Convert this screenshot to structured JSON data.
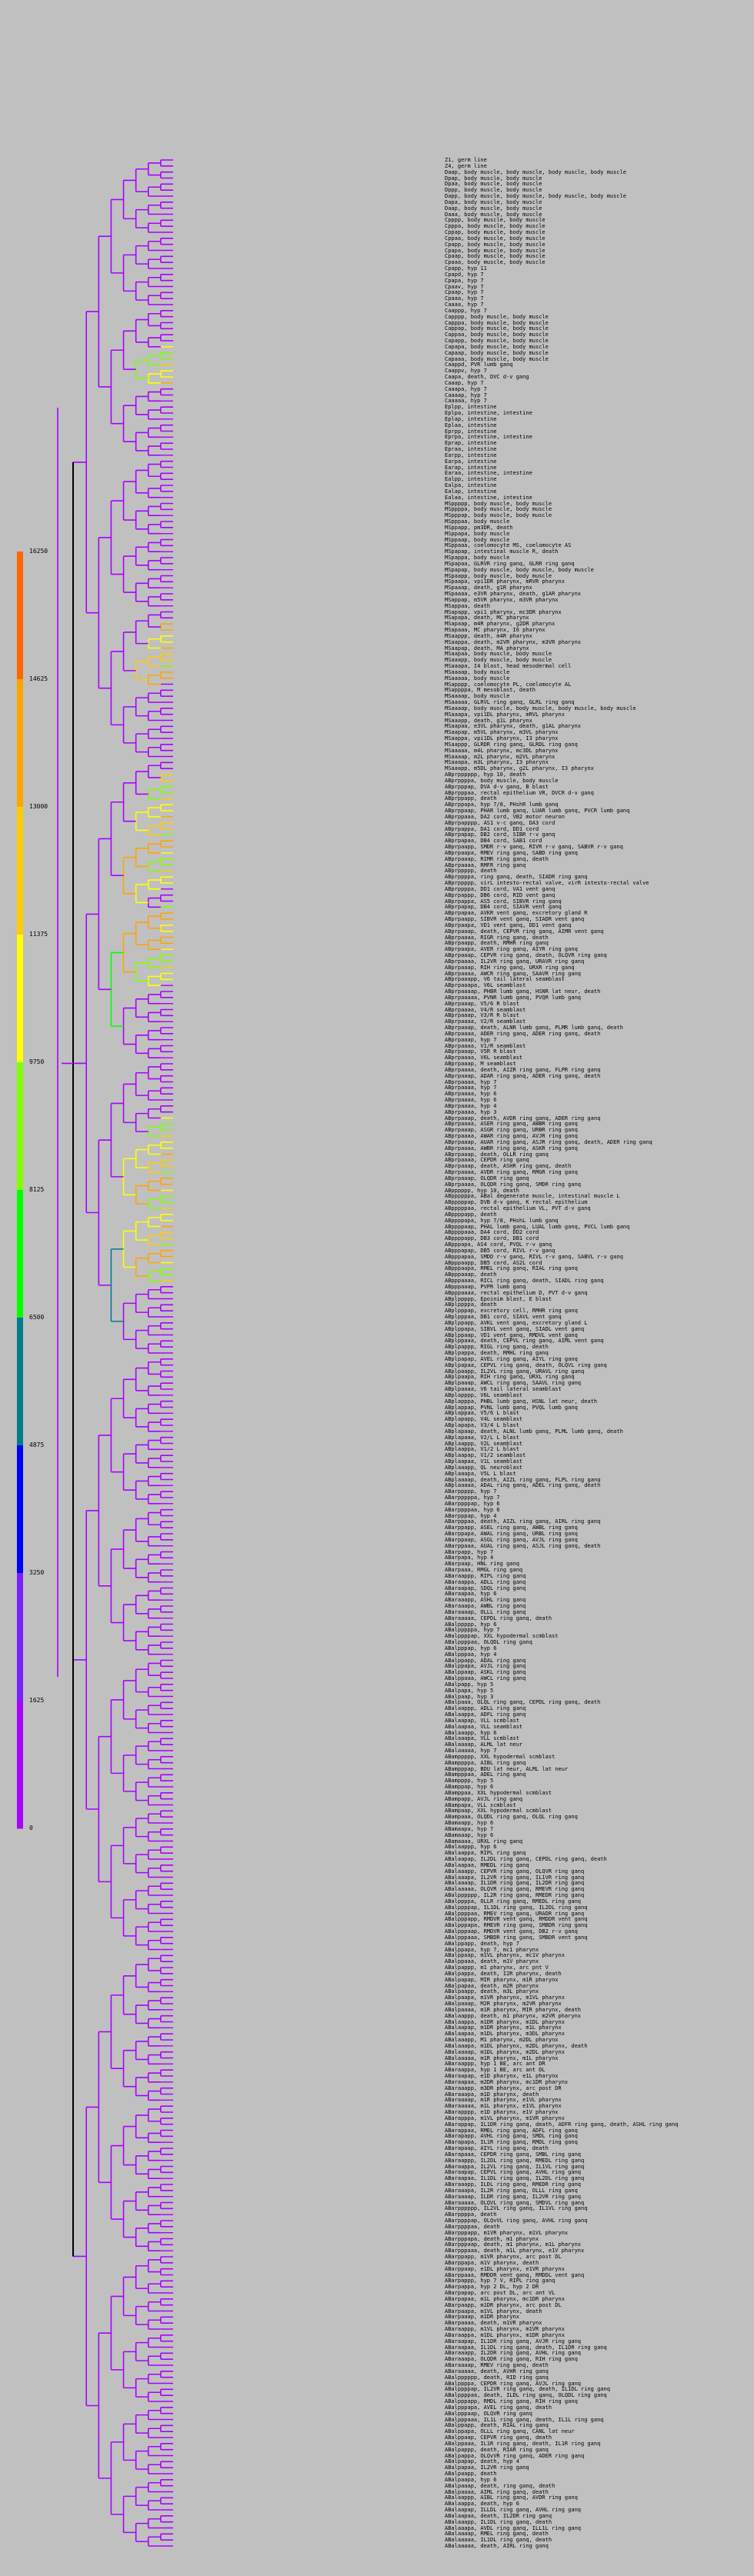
{
  "colors": {
    "background": "#c0c0c0",
    "tree_default": "#aa00ff",
    "root_line": "#000000",
    "heat_scale": [
      "#aa00ff",
      "#7a1fff",
      "#0000ff",
      "#007e8c",
      "#00ff00",
      "#7fff00",
      "#ffff00",
      "#ffcc00",
      "#ffa500",
      "#ff6600"
    ]
  },
  "legend": {
    "ticks": [
      "16250",
      "14625",
      "13000",
      "11375",
      "9750",
      "8125",
      "6500",
      "4875",
      "3250",
      "1625",
      "0"
    ]
  },
  "labels": [
    "Z1, germ line",
    "Z4, germ line",
    "Daap, body muscle, body muscle, body muscle, body muscle",
    "Dpap, body muscle, body muscle",
    "Dpaa, body muscle, body muscle",
    "Dppp, body muscle, body muscle",
    "Dapp, body muscle, body muscle, body muscle, body muscle",
    "Dapa, body muscle, body muscle",
    "Daap, body muscle, body muscle",
    "Daaa, body muscle, body muscle",
    "Cpppp, body muscle, body muscle",
    "Cpppa, body muscle, body muscle",
    "Cppap, body muscle, body muscle",
    "Cppaa, body muscle, body muscle",
    "Cpapp, body muscle, body muscle",
    "Cpapa, body muscle, body muscle",
    "Cpaap, body muscle, body muscle",
    "Cpaaa, body muscle, body muscle",
    "Cpapp, hyp 11",
    "Cpapd, hyp 7",
    "Cpapa, hyp 7",
    "Cpaav, hyp 7",
    "Cpaap, hyp 7",
    "Cpaaa, hyp 7",
    "Caaaa, hyp 7",
    "Caappp, hyp 7",
    "Capppp, body muscle, body muscle",
    "Capppa, body muscle, body muscle",
    "Cappap, body muscle, body muscle",
    "Cappaa, body muscle, body muscle",
    "Capapp, body muscle, body muscle",
    "Capapa, body muscle, body muscle",
    "Capaap, body muscle, body muscle",
    "Capaaa, body muscle, body muscle",
    "Caappd, PVR lumb ganq",
    "Caappv, hyp 7",
    "Caapa, death, DVC d-v gang",
    "Caaap, hyp 7",
    "Caaapa, hyp 7",
    "Caaaap, hyp 7",
    "Caaaaa, hyp 7",
    "Eplpp, intestine",
    "Eplpa, intestine, intestine",
    "Eplap, intestine",
    "Eplaa, intestine",
    "Eprpp, intestine",
    "Eprpa, intestine, intestine",
    "Eprap, intestine",
    "Epraa, intestine",
    "Earpp, intestine",
    "Earpa, intestine",
    "Earap, intestine",
    "Earaa, intestine, intestine",
    "Ealpp, intestine",
    "Ealpa, intestine",
    "Ealap, intestine",
    "Ealaa, intestine, intestine",
    "MSppppp, body muscle, body muscle",
    "MSppppa, body muscle, body muscle",
    "MSpppap, body muscle, body muscle",
    "MSpppaa, body muscle",
    "MSppapp, pm3DR, death",
    "MSppapa, body muscle",
    "MSppaap, body muscle",
    "MSppaaa, coelomocyte MS, coelomocyte AS",
    "MSpapap, intestinal muscle R, death",
    "MSpappa, body muscle",
    "MSpapaa, GLRVR ring ganq, GLRR ring ganq",
    "MSpapap, body muscle, body muscle, body muscle",
    "MSpaapp, body muscle, body muscle",
    "MSpaapa, vpi1DR pharynx, mRVR pharynx",
    "MSpaaap, death, g1R pharynx",
    "MSpaaaa, e3VR pharynx, death, g1AR pharynx",
    "MSappap, m5VR pharynx, m3VR pharynx",
    "MSappaa, death",
    "MSapapp, vpi1 pharynx, mc3DR pharynx",
    "MSapapa, death, MC pharynx",
    "MSapaap, m4R pharynx, g2DR pharynx",
    "MSapaaa, MC pharynx, I6 pharynx",
    "MSaappp, death, m4R pharynx",
    "MSaappa, death, m2VR pharynx, m3VR pharynx",
    "MSaapap, death, MA pharynx",
    "MSaapaa, body muscle, body muscle",
    "MSaaapp, body muscle, body muscle",
    "MSaaapa, I4 blast, head mesodermal cell",
    "MSaaaap, body muscle",
    "MSaaaaa, body muscle",
    "MSapppp, coelomocyte PL, coelomocyte AL",
    "MSappppa, M mesoblast, death",
    "MSaaaap, body muscle",
    "MSaaaaa, GLRVL ring ganq, GLRL ring ganq",
    "MSaaaap, body muscle, body muscle, body muscle, body muscle",
    "MSaaapa, vpi1DL pharynx, mRVL pharynx",
    "MSaaapp, death, g1L pharynx",
    "MSaapaa, e3VL pharynx, death, g1AL pharynx",
    "MSaapap, m5VL pharynx, m3VL pharynx",
    "MSaappa, vpi1DL pharynx, I3 pharynx",
    "MSaappp, GLRDR ring ganq, GLRDL ring ganq",
    "MSaaaaa, m4L pharynx, mc3DL pharynx",
    "MSaaaap, m2L pharynx, m2VL pharynx",
    "MSaaapa, m3L pharynx, I3 pharynx",
    "MSaaapp, m5DL pharynx, g2L pharynx, I3 pharynx",
    "ABprpppppp, hyp 10, death",
    "ABprppppa, body muscle, body muscle",
    "ABprpppap, DVA d-v ganq, B blast",
    "ABprpppaa, rectal epithelium VR, DVCR d-v ganq",
    "ABprppapp, death",
    "ABprppapa, hyp 7/8, PHshR lumb ganq",
    "ABprppaap, PHAR lumb ganq, LUAR lumb ganq, PVCR lumb ganq",
    "ABprppaaa, DA2 cord, VB2 motor neuron",
    "ABprpapppp, AS1 v-c ganq, DA3 cord",
    "ABprpappa, DA1 cord, DD1 cord",
    "ABprpapap, DB2 cord, SIBR r-v ganq",
    "ABprpapaa, DB4 cord, SAB1 cord",
    "ABprpaapp, SMDR r-v ganq, RIVR r-v ganq, SABVR r-v ganq",
    "ABprpaapa, RMEV ring ganq, SABD ring ganq",
    "ABprpaaap, RIMR ring ganq, death",
    "ABprpaaaa, RMFR ring ganq",
    "ABprppppp, death",
    "ABprppppa, ring ganq, death, SIADR ring ganq",
    "ABprppppp, virL intesto-rectal valve, virR intesto-rectal valve",
    "ABprppppa, DD1 cord, VA1 vent ganq",
    "ABprpappp, DB6 cord, RID vent ganq",
    "ABprpappa, AS5 cord, SIBVR ring ganq",
    "ABprpapap, DB4 cord, SIAVR vent ganq",
    "ABprpapaa, AVKR vent ganq, excretory gland R",
    "ABprpaapp, SIBVR vent ganq, SIADR vent ganq",
    "ABprpaapa, VD1 vent ganq, DD1 vent ganq",
    "ABprpaaap, death, CEPVR ring ganq, AIMR vent ganq",
    "ABprpaaaa, RIGR ring ganq, death",
    "ABprpaapp, death, RMHR ring ganq",
    "ABprpaapa, AVER ring ganq, AIYR ring ganq",
    "ABprpaaap, CEPVR ring ganq, death, OLQVR ring ganq",
    "ABprpaaaa, IL2VR ring ganq, URAVR ring ganq",
    "ABprpaaap, RIH ring ganq, URXR ring ganq",
    "ABprpaaaa, AWCR ring ganq, SAAVR ring ganq",
    "ABprpaaapp, V6 tail lateral seamblast",
    "ABprpaaapa, V6L seamblast",
    "ABprpaaaap, PHBR lumb ganq, HSNR lat neur, death",
    "ABprpaaaaa, PVNR lumb ganq, PVQR lumb ganq",
    "ABprpaaap, V5/6 R blast",
    "ABprpaaaa, V4/R seamblast",
    "ABprpaaap, V3/R R blast",
    "ABprpaaaa, V2/R seamblast",
    "ABprpaaap, death, ALNR lumb ganq, PLMR lumb ganq, death",
    "ABprpaaaa, ADER ring ganq, ADER ring ganq, death",
    "ABprpaaap, hyp 7",
    "ABprpaaaa, V1/R seamblast",
    "ABprpaaap, V5R R blast",
    "ABprpaaaa, V6L seamblast",
    "ABprpaaap, M seamblast",
    "ABprpaaaa, death, AIZR ring ganq, FLPR ring ganq",
    "ABprpaaap, ADAR ring ganq, ADER ring ganq, death",
    "ABprpaaaa, hyp 7",
    "ABprpaaaa, hyp 7",
    "ABprpaaaa, hyp 6",
    "ABprpaaaa, hyp 6",
    "ABprpaaaa, hyp 4",
    "ABprpaaaa, hyp 3",
    "ABprpaaap, death, AVDR ring ganq, ADER ring ganq",
    "ABprpaaaa, ASER ring ganq, AWBR ring ganq",
    "ABprpaaap, ASGR ring ganq, URBR ring ganq",
    "ABprpaaaa, AWAR ring ganq, AVJR ring ganq",
    "ABprpaaap, AUAR ring ganq, ASJR ring ganq, death, ADER ring ganq",
    "ABprpaaaa, AWBR ring ganq, ASKR ring ganq",
    "ABprpaaap, death, OLLR ring ganq",
    "ABprpaaaa, CEPDR ring ganq",
    "ABprpaaap, death, ASHR ring ganq, death",
    "ABprpaaaa, AVDR ring ganq, RMGR ring ganq",
    "ABprpaaap, OLQDR ring ganq",
    "ABprpaaaa, OLQDR ring ganq, SMDR ring ganq",
    "ABpppppp, hyp 10, death",
    "ABppppppa, ABal degenerate muscle, intestinal muscle L",
    "ABpppppap, DVB d-v ganq, K rectal epithelium",
    "ABpppppaa, rectal epithelium VL, PVT d-v ganq",
    "ABppppapp, death",
    "ABppppapa, hyp 7/8, PHshL lumb ganq",
    "ABppppaap, PHAL lumb ganq, LUAL lumb ganq, PVCL lumb ganq",
    "ABppppaaa, DA4 cord, DD2 cord",
    "ABppppapp, DB3 cord, DB1 cord",
    "ABpppapa, AS4 cord, PVQL r-v ganq",
    "ABpppapap, DB5 cord, RIVL r-v ganq",
    "ABpppapaa, SMDD r-v ganq, RIVL r-v ganq, SABVL r-v ganq",
    "ABpppaapp, DB5 cord, AS2L cord",
    "ABpppaapa, RMEL ring ganq, RIAL ring ganq",
    "ABpppaaap, death",
    "ABpppaaaa, RICL ring ganq, death, SIADL ring ganq",
    "ABpppaaap, PVPR lumb ganq",
    "ABpppaaaa, rectal epithelium D, PVT d-v ganq",
    "ABplppppp, Epoinim blast, E blast",
    "ABplppppa, death",
    "ABplpppap, excretory cell, RMHR ring ganq",
    "ABplpppaa, DB1 cord, SIAVL vent ganq",
    "ABplppapp, AVKL vent ganq, excretory gland L",
    "ABplppapa, SIBVL vent ganq, SIADL vent ganq",
    "ABplppaap, VD1 vent ganq, RMDVL vent ganq",
    "ABplppaaa, death, CEPVL ring ganq, AIML vent ganq",
    "ABplpappp, RIGL ring ganq, death",
    "ABplpappa, death, RMHL ring ganq",
    "ABplpapap, AVEL ring ganq, AIYL ring ganq",
    "ABplpapaa, CEPVL ring ganq, death, OLQVL ring ganq",
    "ABplpaapp, IL2VL ring ganq, URAVL ring ganq",
    "ABplpaapa, RIH ring ganq, URXL ring ganq",
    "ABplpaaap, AWCL ring ganq, SAAVL ring ganq",
    "ABplpaaaa, V6 tail lateral seamblast",
    "ABplapppp, V6L seamblast",
    "ABplapppa, PHBL lumb ganq, HSNL lat neur, death",
    "ABplappap, PVNL lumb ganq, PVQL lumb ganq",
    "ABplappaa, V5/6 L blast",
    "ABplapapp, V4L seamblast",
    "ABplapapa, V3/4 L blast",
    "ABplapaap, death, ALNL lumb ganq, PLML lumb ganq, death",
    "ABplapaaa, V2/L L blast",
    "ABplaappp, V2L seamblast",
    "ABplaappa, V1/2 L blast",
    "ABplaapap, V1/2 seamblast",
    "ABplaapaa, V1L seamblast",
    "ABplaaapp, QL neuroblast",
    "ABplaaapa, V5L L blast",
    "ABplaaaap, death, AIZL ring ganq, FLPL ring ganq",
    "ABplaaaaa, ADAL ring ganq, ADEL ring ganq, death",
    "ABarppppp, hyp 7",
    "ABarpppppa, hyp 7",
    "ABarppppap, hyp 6",
    "ABarppppaa, hyp 6",
    "ABarpppap, hyp 4",
    "ABarpppaa, death, AIZL ring ganq, AIRL ring ganq",
    "ABarppapp, ASEL ring ganq, AWBL ring ganq",
    "ABarppapa, AWAL ring ganq, URBL ring ganq",
    "ABarppaap, ASGL ring ganq, AVJL ring ganq",
    "ABarppaaa, AUAL ring ganq, ASJL ring ganq, death",
    "ABarpapp, hyp 7",
    "ABarpapa, hyp 4",
    "ABarpaap, HNL ring ganq",
    "ABarpaaa, RMGL ring ganq",
    "ABaraappp, RIPL ring ganq",
    "ABaraappa, ADLL ring ganq",
    "ABaraapap, SDQL ring ganq",
    "ABaraapaa, hyp 6",
    "ABaraaapp, ASHL ring ganq",
    "ABaraaapa, AWBL ring ganq",
    "ABaraaaap, OLLL ring ganq",
    "ABaraaaaa, CEPDL ring ganq, death",
    "ABalppppp, hyp 6",
    "ABalpppppa, hyp 7",
    "ABalppppap, XXL hypodermal scmblast",
    "ABalppppaa, OLQDL ring ganq",
    "ABalpppap, hyp 6",
    "ABalpppaa, hyp 4",
    "ABalppapp, ADAL ring ganq",
    "ABalppapa, AVJL ring ganq",
    "ABalppaap, ASKL ring ganq",
    "ABalppaaa, AWCL ring ganq",
    "ABalpapp, hyp 5",
    "ABalpapa, hyp 5",
    "ABalpaap, hyp 3",
    "ABalpaaa, OLQL ring ganq, CEPDL ring ganq, death",
    "ABalaappp, ADLL ring ganq",
    "ABalaappa, ADFL ring ganq",
    "ABalaapap, VLL scmblast",
    "ABalaapaa, VLL seamblast",
    "ABalaaapp, hyp 6",
    "ABalaaapa, VLL scmblast",
    "ABalaaaap, ALML lat neur",
    "ABalaaaaa, hyp 7",
    "ABamppppp, XXL hypodermal scmblast",
    "ABamppppa, AIBL ring ganq",
    "ABampppap, BDU lat neur, ALML lat neur",
    "ABampppaa, ADEL ring ganq",
    "ABampppp, hyp 5",
    "ABamppap, hyp 6",
    "ABamppaa, XXL hypodermal scmblast",
    "ABampapp, AVJL ring ganq",
    "ABampapa, VLL scmblast",
    "ABampaap, XXL hypodermal scmblast",
    "ABampaaa, OLQDL ring ganq, OLQL ring ganq",
    "ABamaapp, hyp 6",
    "ABamaapa, hyp 7",
    "ABamaaap, hyp 6",
    "ABamaaaa, URXL ring ganq",
    "ABalaappp, hyp 6",
    "ABalaappa, RIPL ring ganq",
    "ABalaapap, IL2DL ring ganq, CEPDL ring ganq, death",
    "ABalaapaa, RMEDL ring ganq",
    "ABalaaapp, CEPVR ring ganq, OLQVR ring ganq",
    "ABalaaapa, IL2VR ring ganq, IL1VR ring ganq",
    "ABalaaaap, IL1DR ring ganq, IL2DR ring ganq",
    "ABalaaaaa, OLQVR ring ganq, RMEVR ring ganq",
    "ABalpppppp, IL2R ring ganq, RMEDR ring ganq",
    "ABalppppa, OLLR ring ganq, RMEDL ring ganq",
    "ABalppppap, IL1DL ring ganq, IL2DL ring ganq",
    "ABalppppaa, RMEV ring ganq, URADR ring ganq",
    "ABalpppapp, RMDVR vent ganq, RMDDR vent ganq",
    "ABalpppapa, RMEVR ring ganq, SMBDR ring ganq",
    "ABalpppaap, RMDVR vent ganq, DB2 r-v ganq",
    "ABalpppaaa, SMBDR ring ganq, SMBDR vent ganq",
    "ABalppapp, death, hyp 7",
    "ABalppapa, hyp 7, mc1 pharynx",
    "ABalppaap, m1VL pharynx, mc1V pharynx",
    "ABalppaaa, death, m1V pharynx",
    "ABalpappp, m1 pharynx, arc pnt V",
    "ABalpappa, death, I2R pharynx, death",
    "ABalpapap, MIR pharynx, m1R pharynx",
    "ABalpapaa, death, m2R pharynx",
    "ABalpaapp, death, m3L pharynx",
    "ABalpaapa, m1VR pharynx, m1VL pharynx",
    "ABalpaaap, M2R pharynx, m2VR pharynx",
    "ABalpaaaa, m1R pharynx, MIR pharynx, death",
    "ABalaappp, death, m1 pharynx, m2VR pharynx",
    "ABalaappa, m1DR pharynx, m1DL pharynx",
    "ABalaapap, m1DR pharynx, m1L pharynx",
    "ABalaapaa, m1DL pharynx, m3DL pharynx",
    "ABalaaapp, M1 pharynx, m2DL pharynx",
    "ABalaaapa, m1DL pharynx, m2DL pharynx, death",
    "ABalaaaap, m1DL pharynx, m2DL pharynx",
    "ABalaaaaa, m1R pharynx, m1L pharynx",
    "ABaraappp, hyp 1 BE, arc ant DR",
    "ABaraappa, hyp 1 BE, arc ant DL",
    "ABaraapap, e1D pharynx, e1L pharynx",
    "ABaraapaa, m2DR pharynx, mc1DR pharynx",
    "ABaraaapp, m3DR pharynx, arc post DR",
    "ABaraaapa, m1D pharynx, death",
    "ABaraaaap, m1R pharynx, e1VL pharynx",
    "ABaraaaaa, m1L pharynx, e1VL pharynx",
    "ABarapppp, e1D pharynx, e1V pharynx",
    "ABarapppa, m1VL pharynx, m1VR pharynx",
    "ABarappap, IL1DR ring ganq, death, ADFR ring ganq, death, ASHL ring ganq",
    "ABarappaa, RMEL ring ganq, ADFL ring ganq",
    "ABarapapp, AVHL ring ganq, SMDL ring ganq",
    "ABarapapa, IL1R ring ganq, RMDL ring ganq",
    "ABarapaap, AIYL ring ganq, death",
    "ABarapaaa, CEPDR ring ganq, SMBL ring ganq",
    "ABaraappp, IL2DL ring ganq, RMEDL ring ganq",
    "ABaraappa, IL2VL ring ganq, IL1VL ring ganq",
    "ABaraapap, CEPVL ring ganq, AVHL ring ganq",
    "ABaraapaa, IL1DL ring ganq, IL2DL ring ganq",
    "ABaraaapp, ILDL ring ganq, RMEDR ring ganq",
    "ABaraaapa, IL2R ring ganq, OLLL ring ganq",
    "ABaraaaap, ILDR ring ganq, IL2VR ring ganq",
    "ABaraaaaa, OLQVL ring ganq, SMDVL ring ganq",
    "ABarpppppp, IL2VL ring ganq, IL1VL ring ganq",
    "ABarppppa, death",
    "ABarppppap, OLQvVL ring ganq, AVHL ring ganq",
    "ABarppppaa, death",
    "ABarpppapp, m1VR pharynx, m1VL pharynx",
    "ABarpppapa, death, m1 pharynx",
    "ABarpppaap, death, m1 pharynx, m1L pharynx",
    "ABarpppaaa, death, m1L pharynx, e1V pharynx",
    "ABarppapp, m1VR pharynx, arc post DL",
    "ABarppapa, m1V pharynx, death",
    "ABarppaap, e1DL pharynx, e1VR pharynx",
    "ABarppaaa, RMDDR vent ganq, RMDDL vent ganq",
    "ABarpappp, hyp 7 V, RIPL ring ganq",
    "ABarpappa, hyp 2 DL, hyp 2 DR",
    "ABarpapap, arc post DL, arc ant VL",
    "ABarpapaa, m1L pharynx, mc1DR pharynx",
    "ABarpaapp, m1DR pharynx, arc post DL",
    "ABarpaapa, m1VL pharynx, death",
    "ABarpaaap, m1DR pharynx",
    "ABarpaaaa, death, m1VR pharynx",
    "ABaraappp, m1VL pharynx, m1VR pharynx",
    "ABaraappa, m1DL pharynx, m1DR pharynx",
    "ABaraapap, IL1DR ring ganq, AVJR ring ganq",
    "ABaraapaa, IL1DL ring ganq, death, IL1DR ring ganq",
    "ABaraaapp, IL2DR ring ganq, AVHL ring ganq",
    "ABaraaapa, OLQDR ring ganq, RIH ring ganq",
    "ABaraaaap, RMEV ring ganq, death",
    "ABaraaaaa, death, AVHR ring ganq",
    "ABalpppppp, death, RID ring ganq",
    "ABalppppa, CEPDR ring ganq, AVJL ring ganq",
    "ABalppppap, IL2VR ring ganq, death, IL1DL ring ganq",
    "ABalppppaa, death, ILDL ring ganq, OLQDL ring ganq",
    "ABalpppapp, RMDL ring ganq, RIH ring ganq",
    "ABalpppapa, AVEL ring ganq, death",
    "ABalpppaap, OLQVR ring ganq",
    "ABalpppaaa, IL1L ring ganq, death, IL1L ring ganq",
    "ABalppapp, death, RIAL ring ganq",
    "ABalppapa, OLLL ring ganq, CANL lat neur",
    "ABalppaap, CEPVR ring ganq, death",
    "ABalppaaa, IL1R ring ganq, death, IL1R ring ganq",
    "ABalpappp, death, RIAR ring ganq",
    "ABalpappa, OLQvVR ring ganq, ADER ring ganq",
    "ABalpapap, death, hyp 4",
    "ABalpapaa, IL2VR ring ganq",
    "ABalpaapp, death",
    "ABalpaapa, hyp 6",
    "ABalpaaap, death, ring ganq, death",
    "ABalpaaaa, AIML ring ganq, death",
    "ABalaappp, AIBL ring ganq, AVDR ring ganq",
    "ABalaappa, death, hyp 6",
    "ABalaapap, ILLDL ring ganq, AVHL ring ganq",
    "ABalaapaa, death, IL2DR ring ganq",
    "ABalaaapp, IL1DL ring ganq, death",
    "ABalaaapa, AVDL ring ganq, ILL1L ring ganq",
    "ABalaaaap, RMEL ring ganq, death",
    "ABalaaaaa, IL1DL ring ganq, death",
    "ABalaaaaa, death, AIRL ring ganq"
  ]
}
